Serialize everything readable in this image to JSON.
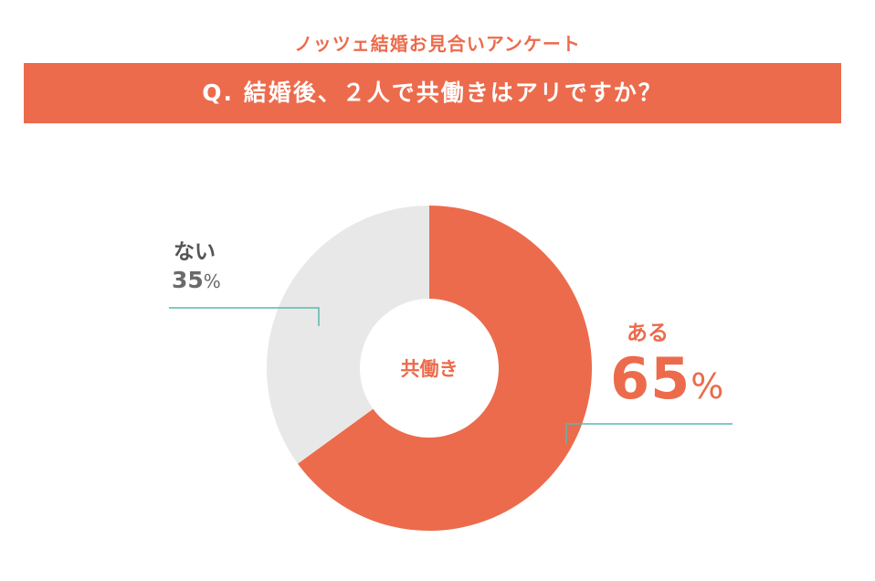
{
  "header": {
    "survey_name": "ノッツェ結婚お見合いアンケート",
    "question": "Q. 結婚後、２人で共働きはアリですか？"
  },
  "colors": {
    "accent": "#ec6b4c",
    "neutral": "#e8e8e8",
    "leader": "#5cb8ae"
  },
  "chart_data": {
    "type": "pie",
    "title": "",
    "center_label": "共働き",
    "labels": [
      "ある",
      "ない"
    ],
    "values": [
      65,
      35
    ],
    "unit": "%",
    "colors": [
      "#ec6b4c",
      "#e8e8e8"
    ],
    "value_display": [
      {
        "num": "65",
        "pct": "%"
      },
      {
        "num": "35",
        "pct": "%"
      }
    ]
  }
}
